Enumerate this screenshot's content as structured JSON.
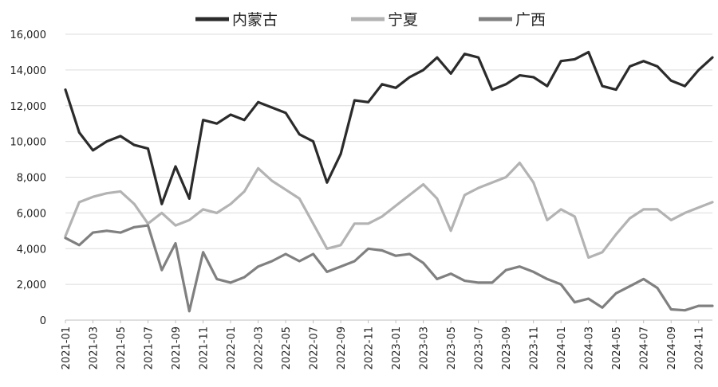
{
  "chart_data": {
    "type": "line",
    "title": "",
    "xlabel": "",
    "ylabel": "",
    "ylim": [
      0,
      16000
    ],
    "yticks": [
      "16,000",
      "14,000",
      "12,000",
      "10,000",
      "8,000",
      "6,000",
      "4,000",
      "2,000",
      "0"
    ],
    "xticks": [
      "2021-01",
      "2021-03",
      "2021-05",
      "2021-07",
      "2021-09",
      "2021-11",
      "2022-01",
      "2022-03",
      "2022-05",
      "2022-07",
      "2022-09",
      "2022-11",
      "2023-01",
      "2023-03",
      "2023-05",
      "2023-07",
      "2023-09",
      "2023-11",
      "2024-01",
      "2024-03",
      "2024-05",
      "2024-07",
      "2024-09",
      "2024-11"
    ],
    "grid": "horizontal",
    "legend_position": "top",
    "x": [
      "2021-01",
      "2021-02",
      "2021-03",
      "2021-04",
      "2021-05",
      "2021-06",
      "2021-07",
      "2021-08",
      "2021-09",
      "2021-10",
      "2021-11",
      "2021-12",
      "2022-01",
      "2022-02",
      "2022-03",
      "2022-04",
      "2022-05",
      "2022-06",
      "2022-07",
      "2022-08",
      "2022-09",
      "2022-10",
      "2022-11",
      "2022-12",
      "2023-01",
      "2023-02",
      "2023-03",
      "2023-04",
      "2023-05",
      "2023-06",
      "2023-07",
      "2023-08",
      "2023-09",
      "2023-10",
      "2023-11",
      "2023-12",
      "2024-01",
      "2024-02",
      "2024-03",
      "2024-04",
      "2024-05",
      "2024-06",
      "2024-07",
      "2024-08",
      "2024-09",
      "2024-10",
      "2024-11",
      "2024-12"
    ],
    "series": [
      {
        "name": "内蒙古",
        "color": "#2b2b2b",
        "values": [
          12900,
          10500,
          9500,
          10000,
          10300,
          9800,
          9600,
          6500,
          8600,
          6800,
          11200,
          11000,
          11500,
          11200,
          12200,
          11900,
          11600,
          10400,
          10000,
          7700,
          9300,
          12300,
          12200,
          13200,
          13000,
          13600,
          14000,
          14700,
          13800,
          14900,
          14700,
          12900,
          13200,
          13700,
          13600,
          13100,
          14500,
          14600,
          15000,
          13100,
          12900,
          14200,
          14500,
          14200,
          13400,
          13100,
          14000,
          14700
        ]
      },
      {
        "name": "宁夏",
        "color": "#b3b3b3",
        "values": [
          4700,
          6600,
          6900,
          7100,
          7200,
          6500,
          5400,
          6000,
          5300,
          5600,
          6200,
          6000,
          6500,
          7200,
          8500,
          7800,
          7300,
          6800,
          5400,
          4000,
          4200,
          5400,
          5400,
          5800,
          6400,
          7000,
          7600,
          6800,
          5000,
          7000,
          7400,
          7700,
          8000,
          8800,
          7700,
          5600,
          6200,
          5800,
          3500,
          3800,
          4800,
          5700,
          6200,
          6200,
          5600,
          6000,
          6300,
          6600
        ]
      },
      {
        "name": "广西",
        "color": "#808080",
        "values": [
          4600,
          4200,
          4900,
          5000,
          4900,
          5200,
          5300,
          2800,
          4300,
          500,
          3800,
          2300,
          2100,
          2400,
          3000,
          3300,
          3700,
          3300,
          3700,
          2700,
          3000,
          3300,
          4000,
          3900,
          3600,
          3700,
          3200,
          2300,
          2600,
          2200,
          2100,
          2100,
          2800,
          3000,
          2700,
          2300,
          2000,
          1000,
          1200,
          700,
          1500,
          1900,
          2300,
          1800,
          600,
          550,
          800,
          800
        ]
      }
    ]
  }
}
